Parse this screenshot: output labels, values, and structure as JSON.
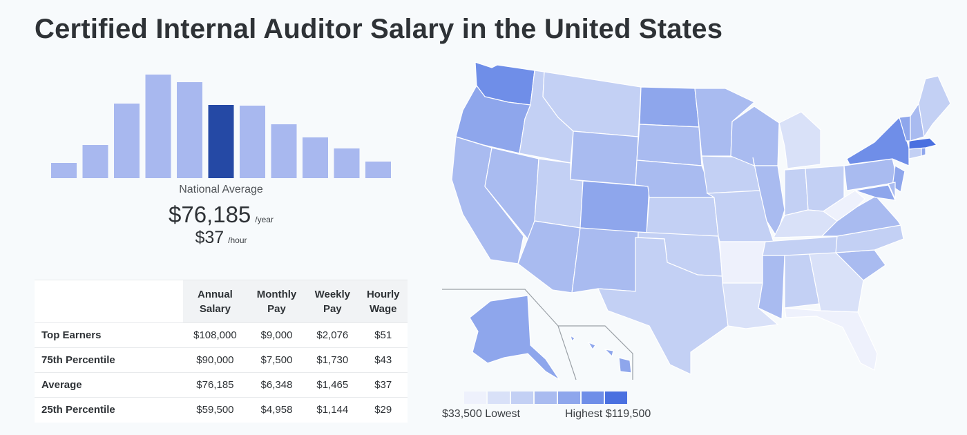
{
  "title": "Certified Internal Auditor Salary in the United States",
  "histogram": {
    "values": [
      22,
      48,
      108,
      150,
      139,
      106,
      105,
      78,
      59,
      43,
      24
    ],
    "highlight_index": 5,
    "bar_color": "#a8b8ef",
    "highlight_color": "#2549a5"
  },
  "national_average": {
    "label": "National Average",
    "annual": "$76,185",
    "annual_unit": "/year",
    "hourly": "$37",
    "hourly_unit": "/hour"
  },
  "table": {
    "headers": [
      [
        "Annual",
        "Salary"
      ],
      [
        "Monthly",
        "Pay"
      ],
      [
        "Weekly",
        "Pay"
      ],
      [
        "Hourly",
        "Wage"
      ]
    ],
    "rows": [
      {
        "label": "Top Earners",
        "cells": [
          "$108,000",
          "$9,000",
          "$2,076",
          "$51"
        ]
      },
      {
        "label": "75th Percentile",
        "cells": [
          "$90,000",
          "$7,500",
          "$1,730",
          "$43"
        ]
      },
      {
        "label": "Average",
        "cells": [
          "$76,185",
          "$6,348",
          "$1,465",
          "$37"
        ]
      },
      {
        "label": "25th Percentile",
        "cells": [
          "$59,500",
          "$4,958",
          "$1,144",
          "$29"
        ]
      }
    ]
  },
  "map": {
    "scale_colors": [
      "#eef1fc",
      "#d9e1f8",
      "#c3d0f4",
      "#a9bbf0",
      "#8ea6ec",
      "#6f8ee8",
      "#4a70e0"
    ],
    "low_label": "$33,500 Lowest",
    "high_label": "Highest $119,500"
  }
}
